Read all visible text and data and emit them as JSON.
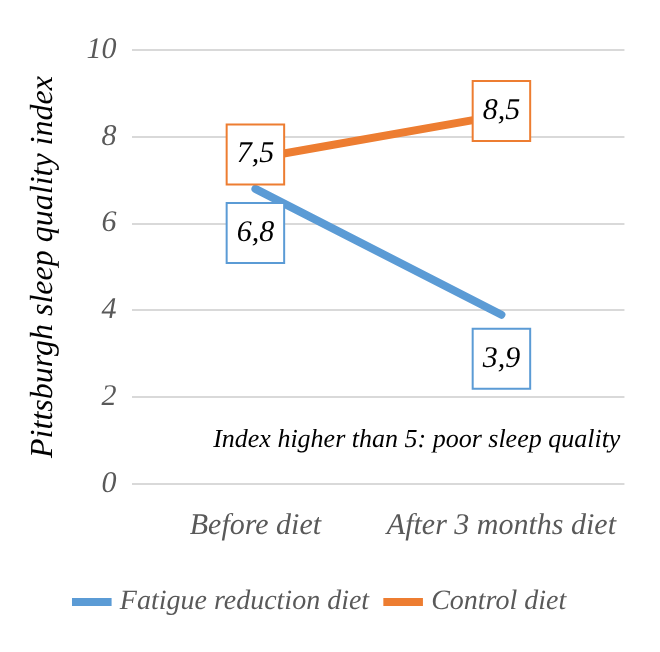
{
  "chart_data": {
    "type": "line",
    "ylabel": "Pittsburgh sleep quality index",
    "categories": [
      "Before diet",
      "After 3 months diet"
    ],
    "series": [
      {
        "name": "Fatigue reduction diet",
        "color": "#5b9bd5",
        "values": [
          6.8,
          3.9
        ],
        "value_labels": [
          "6,8",
          "3,9"
        ]
      },
      {
        "name": "Control diet",
        "color": "#ed7d31",
        "values": [
          7.5,
          8.5
        ],
        "value_labels": [
          "7,5",
          "8,5"
        ]
      }
    ],
    "ylim": [
      0,
      10
    ],
    "yticks": [
      0,
      2,
      4,
      6,
      8,
      10
    ],
    "grid": "y",
    "legend": "bottom",
    "marker": "none",
    "line_style": "solid",
    "annotations": [
      "Index higher than 5: poor sleep quality"
    ]
  }
}
